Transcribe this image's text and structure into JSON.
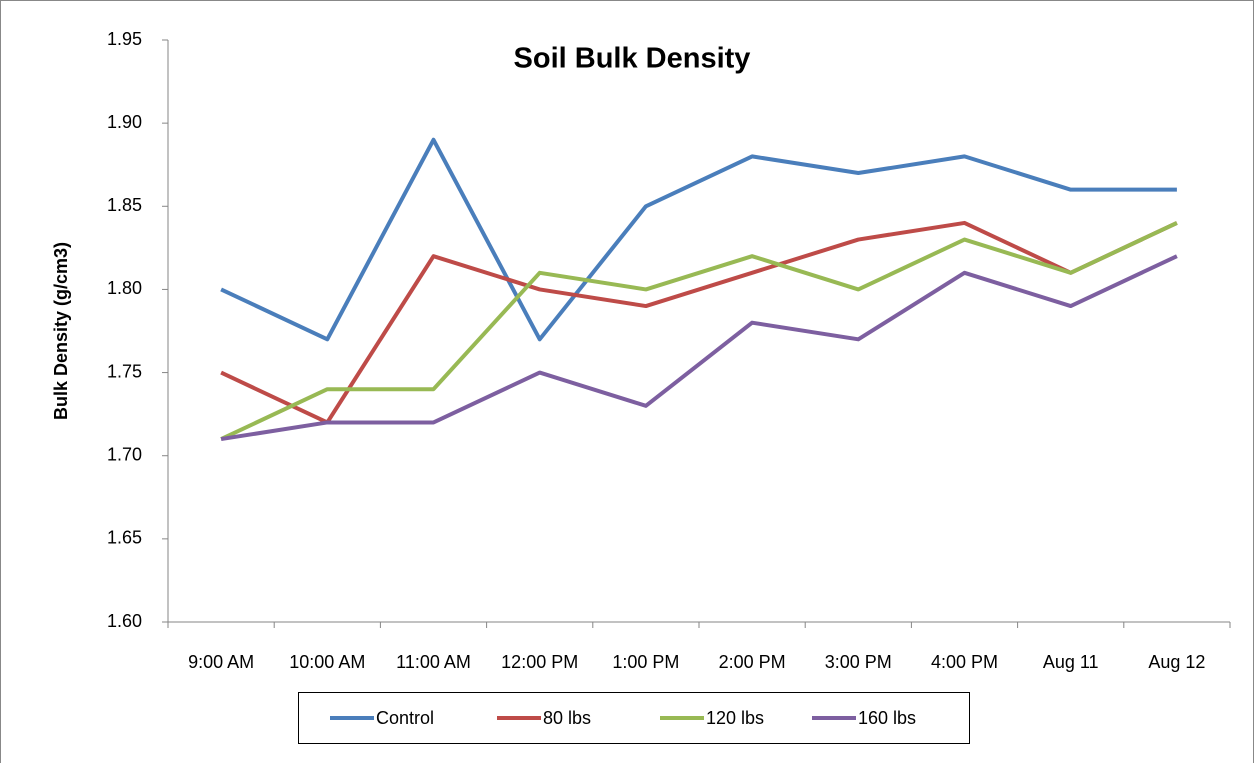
{
  "chart_data": {
    "type": "line",
    "title": "Soil Bulk Density",
    "y_label": "Bulk Density (g/cm3)",
    "categories": [
      "9:00 AM",
      "10:00 AM",
      "11:00 AM",
      "12:00 PM",
      "1:00 PM",
      "2:00 PM",
      "3:00 PM",
      "4:00 PM",
      "Aug 11",
      "Aug 12"
    ],
    "series": [
      {
        "name": "Control",
        "color": "#4a7ebb",
        "values": [
          1.8,
          1.77,
          1.89,
          1.77,
          1.85,
          1.88,
          1.87,
          1.88,
          1.86,
          1.86
        ]
      },
      {
        "name": "80 lbs",
        "color": "#be4b48",
        "values": [
          1.75,
          1.72,
          1.82,
          1.8,
          1.79,
          1.81,
          1.83,
          1.84,
          1.81,
          1.84
        ]
      },
      {
        "name": "120 lbs",
        "color": "#98b954",
        "values": [
          1.71,
          1.74,
          1.74,
          1.81,
          1.8,
          1.82,
          1.8,
          1.83,
          1.81,
          1.84
        ]
      },
      {
        "name": "160 lbs",
        "color": "#7d5fa0",
        "values": [
          1.71,
          1.72,
          1.72,
          1.75,
          1.73,
          1.78,
          1.77,
          1.81,
          1.79,
          1.82
        ]
      }
    ],
    "ylim": [
      1.6,
      1.95
    ],
    "yticks": [
      {
        "value": 1.6,
        "label": "1.60"
      },
      1.65,
      {
        "value": 1.7,
        "label": "1.70"
      },
      1.75,
      {
        "value": 1.8,
        "label": "1.80"
      },
      1.85,
      {
        "value": 1.9,
        "label": "1.90"
      },
      1.95
    ],
    "grid": false,
    "legend": "bottom"
  }
}
